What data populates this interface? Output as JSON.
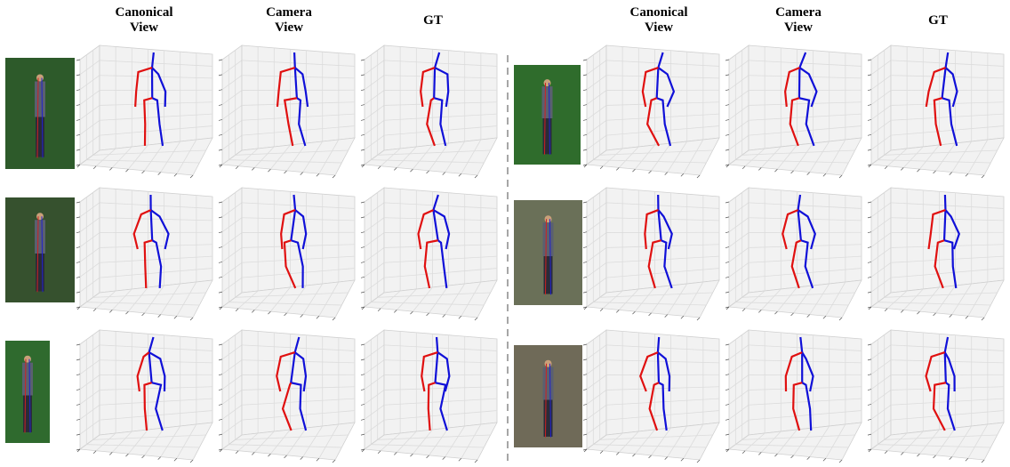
{
  "headers": {
    "left": [
      "Canonical View",
      "Camera View",
      "GT"
    ],
    "right": [
      "Canonical View",
      "Camera View",
      "GT"
    ]
  }
}
